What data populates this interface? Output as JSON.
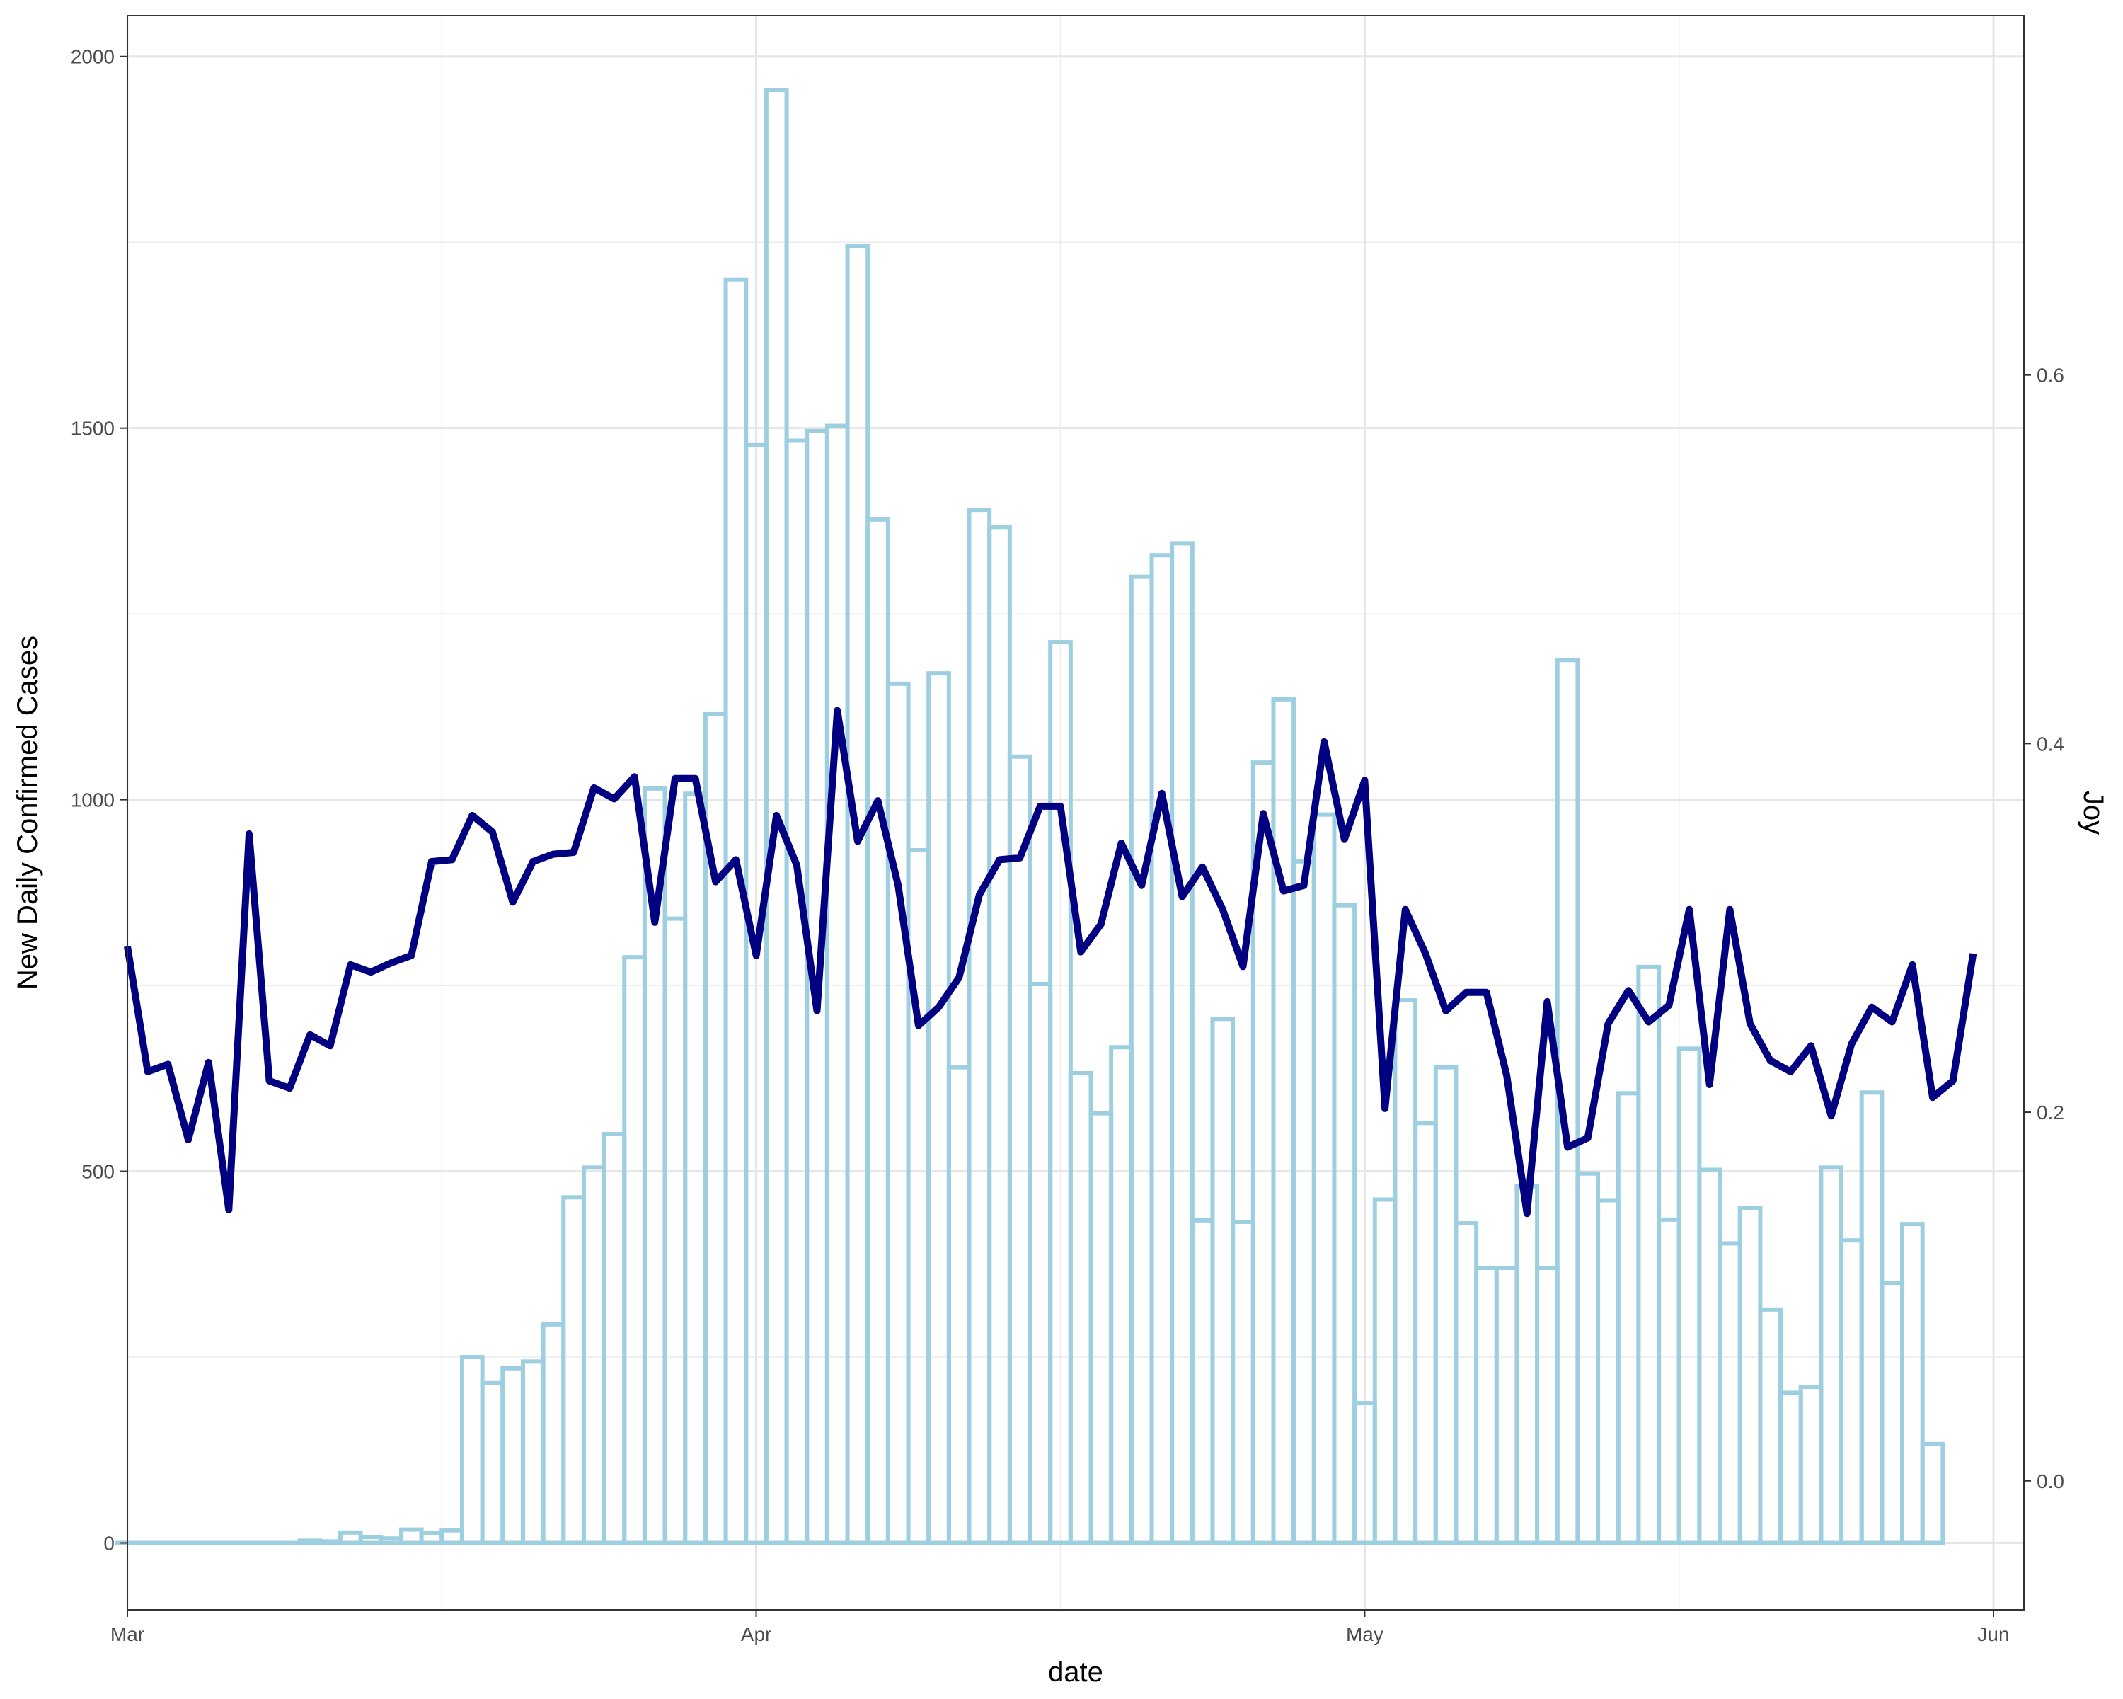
{
  "chart_data": {
    "type": "bar",
    "title": "",
    "xlabel": "date",
    "ylabel": "New Daily Confirmed Cases",
    "y2label": "Joy",
    "x_start": "2020-03-02",
    "x_ticks": [
      "Mar",
      "Apr",
      "May",
      "Jun"
    ],
    "y_ticks": [
      "0",
      "500",
      "1000",
      "1500",
      "2000"
    ],
    "y2_ticks": [
      "0.0",
      "0.2",
      "0.4",
      "0.6"
    ],
    "ylim": [
      -90,
      2055
    ],
    "y2lim": [
      -0.07,
      0.795
    ],
    "grid": true,
    "bar_color": "#9ecfe0",
    "line_color": "#000080",
    "series": [
      {
        "name": "New Daily Confirmed Cases",
        "type": "bar",
        "axis": "left",
        "values": [
          0,
          0,
          0,
          0,
          0,
          0,
          0,
          0,
          0,
          3,
          2,
          14,
          8,
          6,
          18,
          13,
          17,
          250,
          215,
          235,
          244,
          294,
          465,
          505,
          550,
          788,
          1015,
          840,
          1008,
          1115,
          1700,
          1477,
          1955,
          1483,
          1496,
          1503,
          1745,
          1377,
          1156,
          932,
          1170,
          640,
          1390,
          1367,
          1058,
          752,
          1212,
          632,
          578,
          667,
          1300,
          1329,
          1345,
          434,
          705,
          432,
          1050,
          1135,
          917,
          980,
          858,
          188,
          462,
          730,
          565,
          640,
          430,
          370,
          370,
          480,
          370,
          1188,
          497,
          461,
          605,
          775,
          435,
          665,
          502,
          403,
          451,
          314,
          202,
          210,
          505,
          407,
          606,
          350,
          429,
          133
        ]
      },
      {
        "name": "Joy",
        "type": "line",
        "axis": "right",
        "values": [
          0.29,
          0.222,
          0.226,
          0.185,
          0.227,
          0.147,
          0.351,
          0.217,
          0.213,
          0.242,
          0.236,
          0.28,
          0.276,
          0.281,
          0.285,
          0.336,
          0.337,
          0.361,
          0.352,
          0.314,
          0.336,
          0.34,
          0.341,
          0.376,
          0.37,
          0.382,
          0.303,
          0.381,
          0.381,
          0.325,
          0.337,
          0.285,
          0.361,
          0.334,
          0.255,
          0.418,
          0.347,
          0.369,
          0.323,
          0.247,
          0.257,
          0.273,
          0.318,
          0.337,
          0.338,
          0.366,
          0.366,
          0.287,
          0.302,
          0.346,
          0.323,
          0.373,
          0.317,
          0.333,
          0.31,
          0.279,
          0.362,
          0.32,
          0.323,
          0.401,
          0.348,
          0.38,
          0.202,
          0.31,
          0.286,
          0.255,
          0.265,
          0.265,
          0.22,
          0.145,
          0.26,
          0.181,
          0.186,
          0.248,
          0.266,
          0.249,
          0.258,
          0.31,
          0.215,
          0.31,
          0.248,
          0.228,
          0.222,
          0.236,
          0.198,
          0.237,
          0.257,
          0.249,
          0.28,
          0.208,
          0.217,
          0.286
        ]
      }
    ]
  }
}
